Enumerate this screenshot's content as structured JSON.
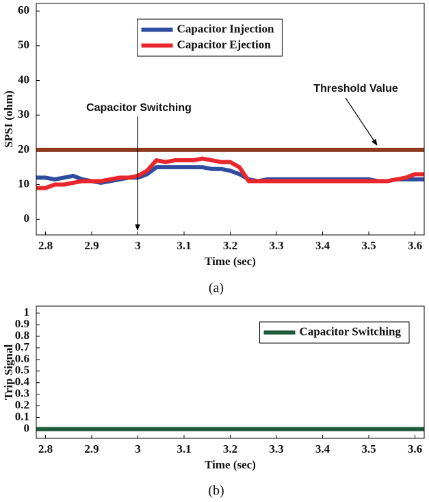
{
  "chart_data": [
    {
      "type": "line",
      "ylabel": "SPSI (ohm)",
      "xlabel": "Time (sec)",
      "caption": "(a)",
      "x": [
        2.78,
        2.8,
        2.82,
        2.84,
        2.86,
        2.88,
        2.9,
        2.92,
        2.94,
        2.96,
        2.98,
        3,
        3.02,
        3.04,
        3.06,
        3.08,
        3.1,
        3.12,
        3.14,
        3.16,
        3.18,
        3.2,
        3.22,
        3.24,
        3.26,
        3.28,
        3.3,
        3.32,
        3.34,
        3.36,
        3.38,
        3.4,
        3.42,
        3.44,
        3.46,
        3.48,
        3.5,
        3.52,
        3.54,
        3.56,
        3.58,
        3.6,
        3.62
      ],
      "series": [
        {
          "name": "Capacitor Injection",
          "color": "#2f4d9e",
          "values": [
            12,
            12,
            11.5,
            12,
            12.5,
            11.5,
            11,
            10.5,
            11,
            11.5,
            12,
            12,
            13,
            15,
            15,
            15,
            15,
            15,
            15,
            14.5,
            14.5,
            14,
            13,
            11.5,
            11,
            11.5,
            11.5,
            11.5,
            11.5,
            11.5,
            11.5,
            11.5,
            11.5,
            11.5,
            11.5,
            11.5,
            11.5,
            11,
            11,
            11.5,
            11.5,
            11.5,
            11.5
          ]
        },
        {
          "name": "Capacitor Ejection",
          "color": "#e8262b",
          "values": [
            9,
            9,
            10,
            10,
            10.5,
            11,
            11,
            11,
            11.5,
            12,
            12,
            12.5,
            14,
            17,
            16.5,
            17,
            17,
            17,
            17.5,
            17,
            16.5,
            16.5,
            15,
            11,
            11,
            11,
            11,
            11,
            11,
            11,
            11,
            11,
            11,
            11,
            11,
            11,
            11,
            11,
            11,
            11.5,
            12,
            13,
            13
          ]
        }
      ],
      "threshold": {
        "value": 20,
        "color": "#8b3a1e"
      },
      "annotations": [
        {
          "text": "Capacitor Switching"
        },
        {
          "text": "Threshold Value"
        }
      ],
      "xlim": [
        2.78,
        3.62
      ],
      "xticks": [
        2.8,
        2.9,
        3,
        3.1,
        3.2,
        3.3,
        3.4,
        3.5,
        3.6
      ],
      "ylim": [
        -4.5,
        62.2
      ],
      "yticks": [
        0,
        10,
        20,
        30,
        40,
        50,
        60
      ],
      "legend": "upper center"
    },
    {
      "type": "line",
      "ylabel": "Trip Signal",
      "xlabel": "Time (sec)",
      "caption": "(b)",
      "x": [
        2.78,
        3.62
      ],
      "series": [
        {
          "name": "Capacitor Switching",
          "color": "#1d5a3c",
          "values": [
            0,
            0
          ]
        }
      ],
      "xlim": [
        2.78,
        3.62
      ],
      "xticks": [
        2.8,
        2.9,
        3,
        3.1,
        3.2,
        3.3,
        3.4,
        3.5,
        3.6
      ],
      "ylim": [
        -0.08,
        1.06
      ],
      "yticks": [
        0,
        0.1,
        0.2,
        0.3,
        0.4,
        0.5,
        0.6,
        0.7,
        0.8,
        0.9,
        1
      ],
      "legend": "upper right"
    }
  ]
}
